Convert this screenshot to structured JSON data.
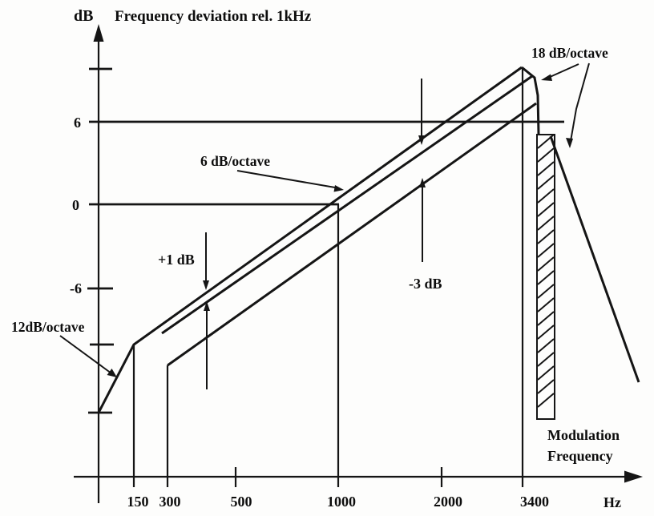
{
  "header": {
    "y_unit": "dB",
    "title": "Frequency deviation rel. 1kHz"
  },
  "y_axis": {
    "ticks": [
      "6",
      "0",
      "-6"
    ]
  },
  "x_axis": {
    "ticks": [
      "150",
      "300",
      "500",
      "1000",
      "2000",
      "3400"
    ],
    "unit": "Hz"
  },
  "annotations": {
    "slope_low": "12dB/octave",
    "slope_mid": "6 dB/octave",
    "slope_high": "18 dB/octave",
    "tolerance_upper": "+1 dB",
    "tolerance_lower": "-3 dB",
    "region_label_line1": "Modulation",
    "region_label_line2": "Frequency"
  },
  "chart_data": {
    "type": "line",
    "title": "Frequency deviation rel. 1kHz",
    "xlabel": "Modulation Frequency (Hz)",
    "ylabel": "Frequency deviation rel. 1kHz (dB)",
    "x_scale": "log",
    "x_ticks": [
      150,
      300,
      500,
      1000,
      2000,
      3400
    ],
    "y_ticks_labeled": [
      6,
      0,
      -6
    ],
    "ylim": [
      -20,
      13
    ],
    "grid": "horizontal reference lines at +6 dB and 0 dB only",
    "legend_position": "none (annotated with arrows)",
    "series": [
      {
        "name": "upper tolerance limit (+1 dB above nominal)",
        "slopes": [
          "12 dB/octave below 150 Hz",
          "6 dB/octave from 150 Hz to 3400 Hz"
        ],
        "points_hz_db": [
          [
            115,
            -17
          ],
          [
            150,
            -12
          ],
          [
            1000,
            1
          ],
          [
            3400,
            11.5
          ]
        ]
      },
      {
        "name": "nominal response",
        "slopes": [
          "6 dB/octave"
        ],
        "points_hz_db": [
          [
            290,
            -11
          ],
          [
            1000,
            0
          ],
          [
            3400,
            10.6
          ]
        ]
      },
      {
        "name": "lower tolerance limit (-3 dB below nominal)",
        "slopes": [
          "6 dB/octave, starts at 300 Hz"
        ],
        "points_hz_db": [
          [
            300,
            -13.5
          ],
          [
            1000,
            -3
          ],
          [
            3300,
            7.5
          ]
        ]
      },
      {
        "name": "roll-off above 3400 Hz",
        "slopes": [
          "18 dB/octave"
        ],
        "points_hz_db": [
          [
            3400,
            10.6
          ],
          [
            3450,
            5
          ],
          [
            3500,
            -15
          ]
        ]
      }
    ],
    "annotations": [
      "12dB/octave",
      "6 dB/octave",
      "18 dB/octave",
      "+1 dB",
      "-3 dB",
      "Modulation Frequency"
    ],
    "hatched_region": "vertical hatched band just above 3400 Hz marking the modulation-frequency cutoff"
  }
}
